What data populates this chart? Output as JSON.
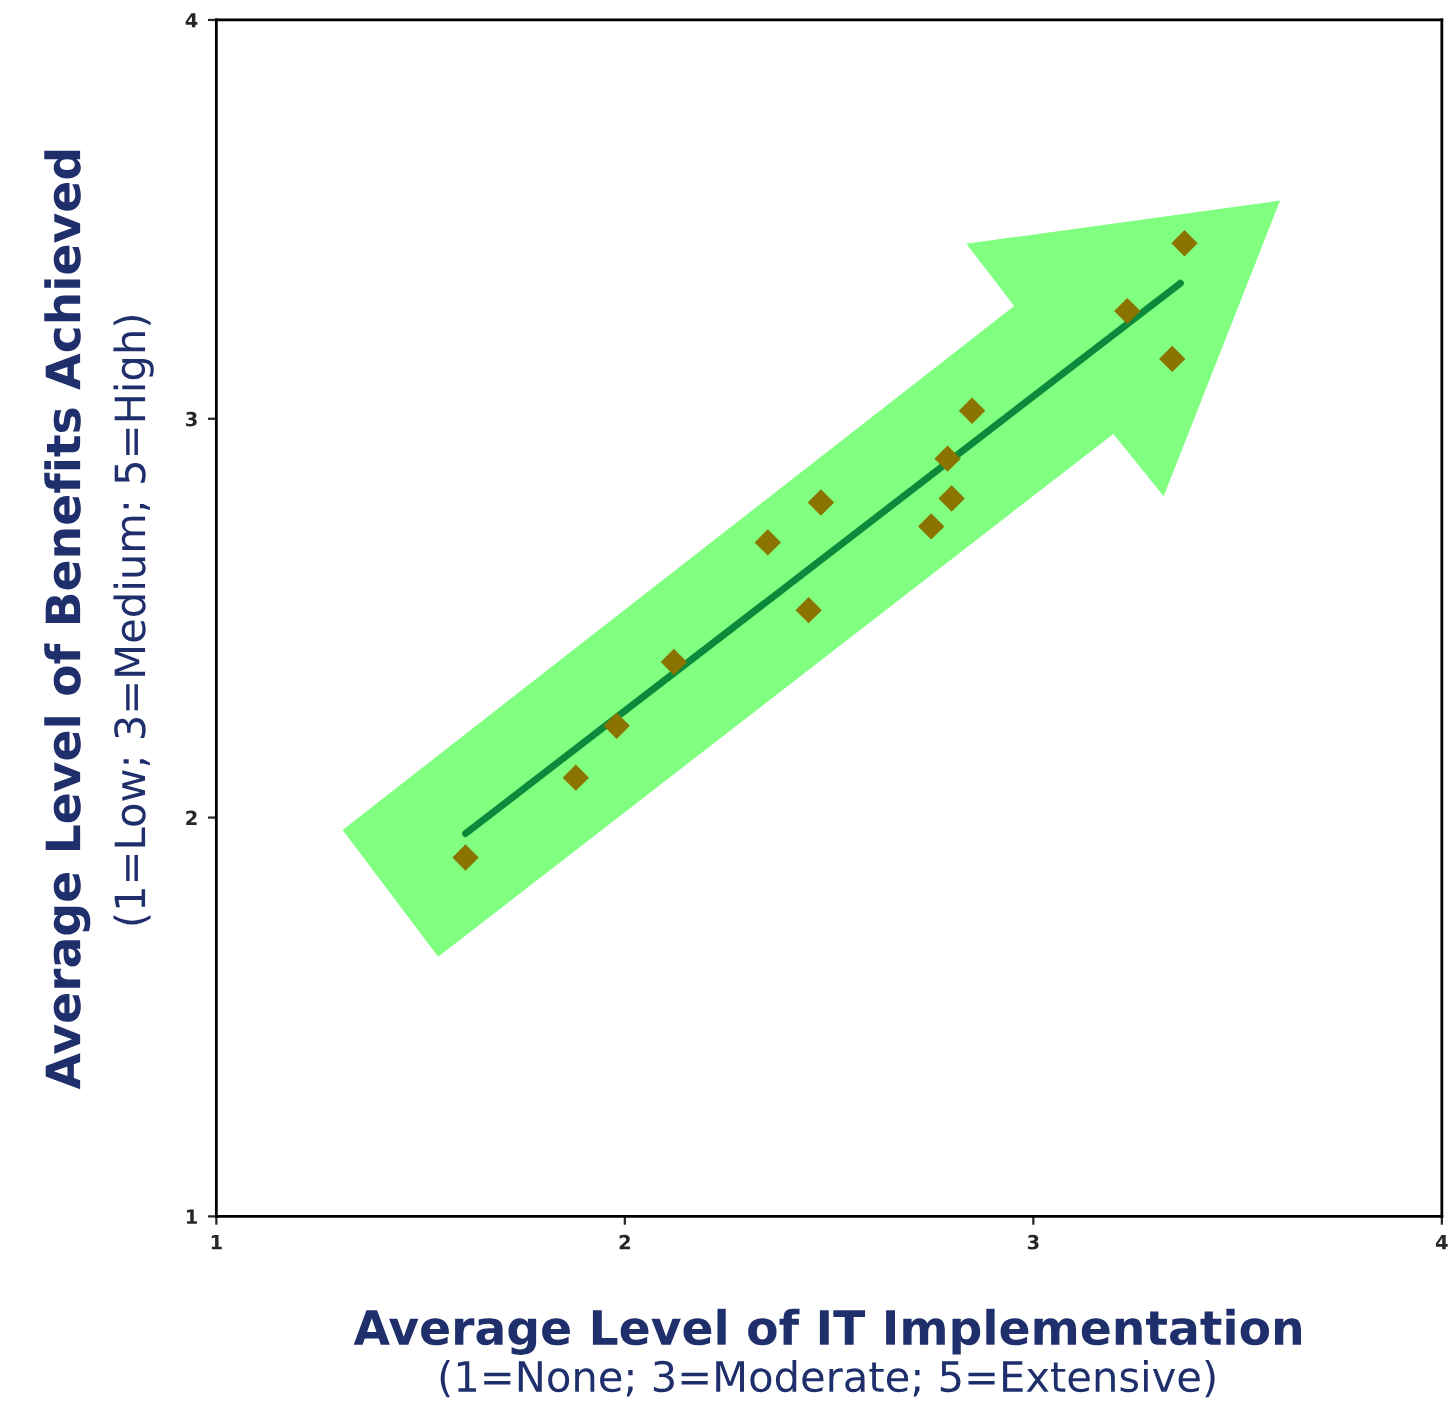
{
  "chart_data": {
    "type": "scatter",
    "xlabel": "Average Level of IT Implementation",
    "ylabel": "Average Level of Benefits Achieved",
    "annotations": [
      "(1=None; 3=Moderate; 5=Extensive)",
      "(1=Low; 3=Medium; 5=High)"
    ],
    "xlim": [
      1,
      4
    ],
    "ylim": [
      1,
      4
    ],
    "xticks": [
      1,
      2,
      3,
      4
    ],
    "yticks": [
      1,
      2,
      3,
      4
    ],
    "grid": false,
    "marker": "diamond",
    "series": [
      {
        "color": "#8b7300",
        "x": [
          1.61,
          1.88,
          1.98,
          2.12,
          2.35,
          2.45,
          2.48,
          2.75,
          2.79,
          2.8,
          2.85,
          3.23,
          3.34,
          3.37
        ],
        "values": [
          1.9,
          2.1,
          2.23,
          2.39,
          2.69,
          2.52,
          2.79,
          2.73,
          2.9,
          2.8,
          3.02,
          3.27,
          3.15,
          3.44
        ]
      },
      {
        "type": "line",
        "color": "#0a8a3a",
        "marker": "none",
        "x": [
          1.61,
          3.36
        ],
        "values": [
          1.96,
          3.34
        ]
      }
    ]
  }
}
